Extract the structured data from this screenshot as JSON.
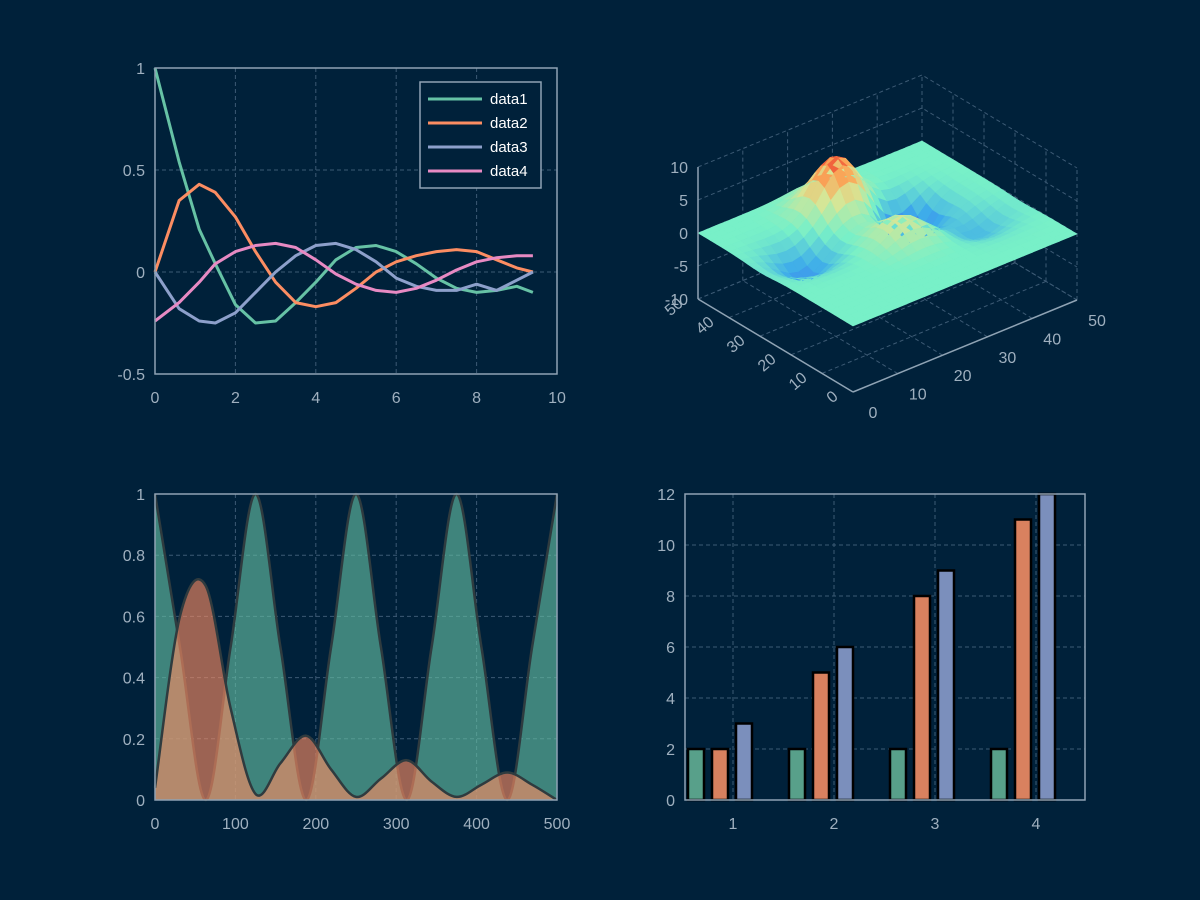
{
  "colors": {
    "background": "#00213a",
    "axis": "#8fa3b4",
    "grid": "#3c5a74",
    "tick_text": "#9fb0bf",
    "series": [
      "#66c2a5",
      "#fc8d62",
      "#8da0cb",
      "#e78ac3"
    ]
  },
  "chart_data": [
    {
      "type": "line",
      "xlim": [
        0,
        10
      ],
      "ylim": [
        -0.5,
        1
      ],
      "xticks": [
        "0",
        "2",
        "4",
        "6",
        "8",
        "10"
      ],
      "yticks": [
        "-0.5",
        "0",
        "0.5",
        "1"
      ],
      "grid": true,
      "legend_position": "top-right",
      "x": [
        0,
        0.6,
        1.1,
        1.5,
        2.0,
        2.5,
        3.0,
        3.5,
        4.0,
        4.5,
        5.0,
        5.5,
        6.0,
        6.5,
        7.0,
        7.5,
        8.0,
        8.5,
        9.0,
        9.4
      ],
      "series": [
        {
          "name": "data1",
          "values": [
            1.0,
            0.54,
            0.21,
            0.04,
            -0.16,
            -0.25,
            -0.24,
            -0.15,
            -0.05,
            0.06,
            0.12,
            0.13,
            0.1,
            0.04,
            -0.03,
            -0.08,
            -0.1,
            -0.09,
            -0.07,
            -0.1
          ]
        },
        {
          "name": "data2",
          "values": [
            0,
            0.35,
            0.43,
            0.39,
            0.27,
            0.1,
            -0.05,
            -0.15,
            -0.17,
            -0.15,
            -0.08,
            0.0,
            0.05,
            0.08,
            0.1,
            0.11,
            0.1,
            0.06,
            0.02,
            0.0
          ]
        },
        {
          "name": "data3",
          "values": [
            0,
            -0.18,
            -0.24,
            -0.25,
            -0.2,
            -0.1,
            0.0,
            0.08,
            0.13,
            0.14,
            0.11,
            0.05,
            -0.03,
            -0.07,
            -0.09,
            -0.09,
            -0.06,
            -0.09,
            -0.04,
            0.0
          ]
        },
        {
          "name": "data4",
          "values": [
            -0.24,
            -0.15,
            -0.05,
            0.04,
            0.1,
            0.13,
            0.14,
            0.12,
            0.06,
            -0.01,
            -0.06,
            -0.09,
            -0.1,
            -0.08,
            -0.04,
            0.01,
            0.05,
            0.07,
            0.08,
            0.08
          ]
        }
      ]
    },
    {
      "type": "surface",
      "grid": true,
      "x_ticks": [
        "0",
        "10",
        "20",
        "30",
        "40",
        "50"
      ],
      "y_ticks": [
        "0",
        "10",
        "20",
        "30",
        "40",
        "50"
      ],
      "z_ticks": [
        "-10",
        "-5",
        "0",
        "5",
        "10"
      ],
      "zlim": [
        -10,
        10
      ],
      "colormap": "rainbow",
      "peaks": [
        {
          "x": 24,
          "y": 40,
          "z": 7.8
        },
        {
          "x": 26,
          "y": 22,
          "z": 3.5
        },
        {
          "x": 34,
          "y": 31,
          "z": -6.5
        },
        {
          "x": 10,
          "y": 30,
          "z": -4.0
        },
        {
          "x": 40,
          "y": 18,
          "z": -2.5
        }
      ]
    },
    {
      "type": "area",
      "xlim": [
        0,
        500
      ],
      "ylim": [
        0,
        1
      ],
      "xticks": [
        "0",
        "100",
        "200",
        "300",
        "400",
        "500"
      ],
      "yticks": [
        "0",
        "0.2",
        "0.4",
        "0.6",
        "0.8",
        "1"
      ],
      "grid": true,
      "x": [
        0,
        31,
        63,
        94,
        125,
        156,
        188,
        219,
        250,
        281,
        313,
        344,
        375,
        406,
        438,
        469,
        500
      ],
      "series": [
        {
          "values": [
            1.0,
            0.5,
            0.0,
            0.5,
            1.0,
            0.5,
            0.0,
            0.5,
            1.0,
            0.5,
            0.0,
            0.5,
            1.0,
            0.5,
            0.0,
            0.5,
            1.0
          ]
        },
        {
          "values": [
            0.04,
            0.6,
            0.7,
            0.3,
            0.02,
            0.12,
            0.21,
            0.1,
            0.01,
            0.07,
            0.13,
            0.06,
            0.01,
            0.05,
            0.09,
            0.05,
            0.0
          ]
        }
      ]
    },
    {
      "type": "bar",
      "categories": [
        "1",
        "2",
        "3",
        "4"
      ],
      "ylim": [
        0,
        12
      ],
      "yticks": [
        "0",
        "2",
        "4",
        "6",
        "8",
        "10",
        "12"
      ],
      "grid": true,
      "series": [
        {
          "values": [
            2,
            2,
            2,
            2
          ]
        },
        {
          "values": [
            2,
            5,
            8,
            11
          ]
        },
        {
          "values": [
            3,
            6,
            9,
            12
          ]
        }
      ]
    }
  ]
}
